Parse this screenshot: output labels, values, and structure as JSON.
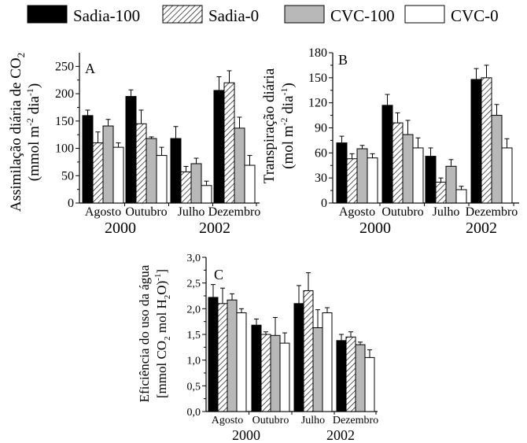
{
  "legend": [
    {
      "label": "Sadia-100",
      "fill": "#000000",
      "pattern": "solid"
    },
    {
      "label": "Sadia-0",
      "fill": "#ffffff",
      "pattern": "hatch"
    },
    {
      "label": "CVC-100",
      "fill": "#b8b8b8",
      "pattern": "solid"
    },
    {
      "label": "CVC-0",
      "fill": "#ffffff",
      "pattern": "solid"
    }
  ],
  "chart_data": [
    {
      "type": "bar",
      "panel": "A",
      "ylabel_line1": "Assimilação diária de CO",
      "ylabel_sub": "2",
      "ylabel_line2": "(mmol m",
      "ylabel_sup1": "-2",
      "ylabel_mid": " dia",
      "ylabel_sup2": "-1",
      "ylabel_end": ")",
      "ylim": [
        0,
        275
      ],
      "yticks": [
        0,
        50,
        100,
        150,
        200,
        250
      ],
      "ytick_labels": [
        "0",
        "50",
        "100",
        "150",
        "200",
        "250"
      ],
      "categories": [
        "Agosto",
        "Outubro",
        "Julho",
        "Dezembro"
      ],
      "years": [
        {
          "label": "2000"
        },
        {
          "label": "2002"
        }
      ],
      "series": [
        {
          "name": "Sadia-100",
          "values": [
            160,
            195,
            118,
            206
          ],
          "errors": [
            10,
            12,
            22,
            25
          ]
        },
        {
          "name": "Sadia-0",
          "values": [
            110,
            145,
            57,
            220
          ],
          "errors": [
            20,
            25,
            10,
            22
          ]
        },
        {
          "name": "CVC-100",
          "values": [
            141,
            118,
            72,
            137
          ],
          "errors": [
            12,
            3,
            10,
            20
          ]
        },
        {
          "name": "CVC-0",
          "values": [
            102,
            87,
            32,
            69
          ],
          "errors": [
            8,
            15,
            8,
            18
          ]
        }
      ]
    },
    {
      "type": "bar",
      "panel": "B",
      "ylabel_line1": "Transpiração diária",
      "ylabel_sub": "",
      "ylabel_line2": "(mol m",
      "ylabel_sup1": "-2",
      "ylabel_mid": " dia",
      "ylabel_sup2": "-1",
      "ylabel_end": ")",
      "ylim": [
        0,
        180
      ],
      "yticks": [
        0,
        30,
        60,
        90,
        120,
        150,
        180
      ],
      "ytick_labels": [
        "0",
        "30",
        "60",
        "90",
        "120",
        "150",
        "180"
      ],
      "categories": [
        "Agosto",
        "Outubro",
        "Julho",
        "Dezembro"
      ],
      "years": [
        {
          "label": "2000"
        },
        {
          "label": "2002"
        }
      ],
      "series": [
        {
          "name": "Sadia-100",
          "values": [
            72,
            117,
            56,
            148
          ],
          "errors": [
            8,
            13,
            10,
            13
          ]
        },
        {
          "name": "Sadia-0",
          "values": [
            53,
            96,
            25,
            150
          ],
          "errors": [
            6,
            12,
            5,
            15
          ]
        },
        {
          "name": "CVC-100",
          "values": [
            65,
            82,
            44,
            105
          ],
          "errors": [
            4,
            17,
            8,
            13
          ]
        },
        {
          "name": "CVC-0",
          "values": [
            54,
            66,
            16,
            66
          ],
          "errors": [
            5,
            12,
            4,
            11
          ]
        }
      ]
    },
    {
      "type": "bar",
      "panel": "C",
      "ylabel_line1": "Eficiência do uso da água",
      "ylabel_sub": "",
      "ylabel_line2": "[mmol CO",
      "ylabel_sup1": "2",
      "ylabel_mid": " mol H",
      "ylabel_sup2": "2",
      "ylabel_end": "O)",
      "ylabel_tail_sup": "-1",
      "ylabel_tail": "]",
      "ylim": [
        0,
        3.0
      ],
      "yticks": [
        0,
        0.5,
        1.0,
        1.5,
        2.0,
        2.5,
        3.0
      ],
      "ytick_labels": [
        "0,0",
        "0,5",
        "1,0",
        "1,5",
        "2,0",
        "2,5",
        "3,0"
      ],
      "categories": [
        "Agosto",
        "Outubro",
        "Julho",
        "Dezembro"
      ],
      "years": [
        {
          "label": "2000"
        },
        {
          "label": "2002"
        }
      ],
      "series": [
        {
          "name": "Sadia-100",
          "values": [
            2.22,
            1.68,
            2.1,
            1.38
          ],
          "errors": [
            0.25,
            0.12,
            0.35,
            0.12
          ]
        },
        {
          "name": "Sadia-0",
          "values": [
            2.1,
            1.5,
            2.35,
            1.45
          ],
          "errors": [
            0.3,
            0.05,
            0.35,
            0.1
          ]
        },
        {
          "name": "CVC-100",
          "values": [
            2.17,
            1.48,
            1.63,
            1.3
          ],
          "errors": [
            0.12,
            0.35,
            0.35,
            0.05
          ]
        },
        {
          "name": "CVC-0",
          "values": [
            1.92,
            1.33,
            1.92,
            1.05
          ],
          "errors": [
            0.08,
            0.2,
            0.1,
            0.15
          ]
        }
      ]
    }
  ]
}
